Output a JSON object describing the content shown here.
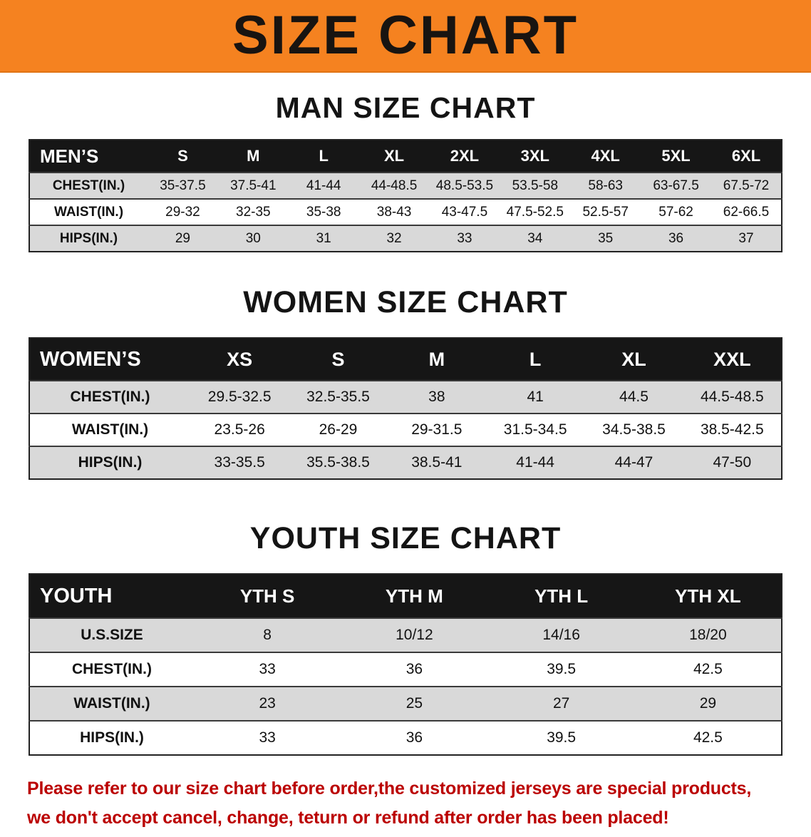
{
  "banner": {
    "title": "SIZE CHART"
  },
  "colors": {
    "banner_bg": "#F58220",
    "table_header_bg": "#161616",
    "row_stripe": "#D9D9D9",
    "notice_text": "#BB0000"
  },
  "chart_data": [
    {
      "type": "table",
      "title": "MAN SIZE CHART",
      "columns": [
        "MEN’S",
        "S",
        "M",
        "L",
        "XL",
        "2XL",
        "3XL",
        "4XL",
        "5XL",
        "6XL"
      ],
      "rows": [
        [
          "CHEST(IN.)",
          "35-37.5",
          "37.5-41",
          "41-44",
          "44-48.5",
          "48.5-53.5",
          "53.5-58",
          "58-63",
          "63-67.5",
          "67.5-72"
        ],
        [
          "WAIST(IN.)",
          "29-32",
          "32-35",
          "35-38",
          "38-43",
          "43-47.5",
          "47.5-52.5",
          "52.5-57",
          "57-62",
          "62-66.5"
        ],
        [
          "HIPS(IN.)",
          "29",
          "30",
          "31",
          "32",
          "33",
          "34",
          "35",
          "36",
          "37"
        ]
      ]
    },
    {
      "type": "table",
      "title": "WOMEN SIZE CHART",
      "columns": [
        "WOMEN’S",
        "XS",
        "S",
        "M",
        "L",
        "XL",
        "XXL"
      ],
      "rows": [
        [
          "CHEST(IN.)",
          "29.5-32.5",
          "32.5-35.5",
          "38",
          "41",
          "44.5",
          "44.5-48.5"
        ],
        [
          "WAIST(IN.)",
          "23.5-26",
          "26-29",
          "29-31.5",
          "31.5-34.5",
          "34.5-38.5",
          "38.5-42.5"
        ],
        [
          "HIPS(IN.)",
          "33-35.5",
          "35.5-38.5",
          "38.5-41",
          "41-44",
          "44-47",
          "47-50"
        ]
      ]
    },
    {
      "type": "table",
      "title": "YOUTH SIZE CHART",
      "columns": [
        "YOUTH",
        "YTH S",
        "YTH M",
        "YTH L",
        "YTH XL"
      ],
      "rows": [
        [
          "U.S.SIZE",
          "8",
          "10/12",
          "14/16",
          "18/20"
        ],
        [
          "CHEST(IN.)",
          "33",
          "36",
          "39.5",
          "42.5"
        ],
        [
          "WAIST(IN.)",
          "23",
          "25",
          "27",
          "29"
        ],
        [
          "HIPS(IN.)",
          "33",
          "36",
          "39.5",
          "42.5"
        ]
      ]
    }
  ],
  "footer": {
    "lines": [
      "Please refer to our size chart before order,the customized jerseys are special products,",
      "we don't accept cancel, change, teturn or refund after order has been placed!"
    ]
  }
}
